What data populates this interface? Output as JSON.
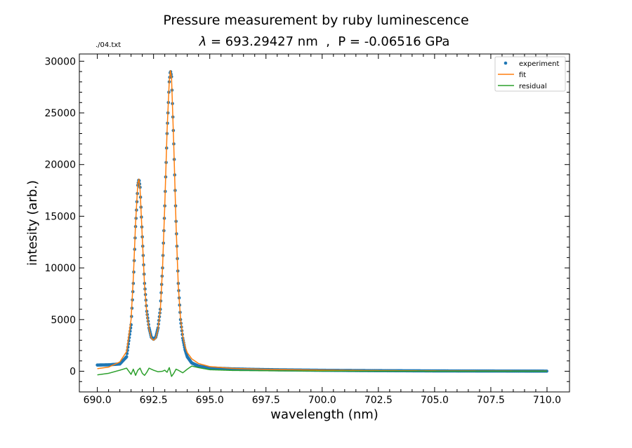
{
  "chart_data": {
    "type": "line",
    "title": "Pressure measurement by ruby luminescence",
    "subtitle": {
      "lambda_symbol": "λ",
      "lambda_text": " = 693.29427 nm  ,  P = -0.06516 GPa"
    },
    "file_label": "./04.txt",
    "xlabel": "wavelength (nm)",
    "ylabel": "intesity (arb.)",
    "xlim": [
      689.2,
      711.0
    ],
    "ylim": [
      -2000,
      30700
    ],
    "x_ticks": [
      690.0,
      692.5,
      695.0,
      697.5,
      700.0,
      702.5,
      705.0,
      707.5,
      710.0
    ],
    "x_tick_labels": [
      "690.0",
      "692.5",
      "695.0",
      "697.5",
      "700.0",
      "702.5",
      "705.0",
      "707.5",
      "710.0"
    ],
    "y_ticks": [
      0,
      5000,
      10000,
      15000,
      20000,
      25000,
      30000
    ],
    "y_tick_labels": [
      "0",
      "5000",
      "10000",
      "15000",
      "20000",
      "25000",
      "30000"
    ],
    "grid": false,
    "legend_position": "top-right",
    "peaks": [
      {
        "center": 691.85,
        "height": 18600
      },
      {
        "center": 693.29,
        "height": 29100
      }
    ],
    "series": [
      {
        "name": "experiment",
        "style": "points",
        "color": "#1f77b4",
        "x": [
          690.0,
          690.5,
          691.0,
          691.3,
          691.5,
          691.6,
          691.7,
          691.8,
          691.85,
          691.9,
          692.0,
          692.1,
          692.2,
          692.3,
          692.4,
          692.5,
          692.6,
          692.7,
          692.8,
          692.9,
          693.0,
          693.1,
          693.2,
          693.25,
          693.3,
          693.4,
          693.5,
          693.6,
          693.7,
          693.8,
          693.9,
          694.0,
          694.2,
          694.5,
          695.0,
          696.0,
          697.0,
          698.0,
          700.0,
          702.0,
          705.0,
          710.0
        ],
        "y": [
          600,
          620,
          700,
          1400,
          4500,
          8500,
          14000,
          18000,
          18600,
          17800,
          13000,
          8500,
          5800,
          4200,
          3300,
          3100,
          3300,
          4200,
          6000,
          10000,
          16000,
          23000,
          28000,
          29100,
          28500,
          22000,
          14500,
          8500,
          5000,
          3200,
          2100,
          1400,
          800,
          500,
          330,
          230,
          180,
          140,
          90,
          60,
          30,
          10
        ]
      },
      {
        "name": "fit",
        "style": "line",
        "color": "#ff7f0e",
        "x": [
          690.0,
          690.5,
          691.0,
          691.3,
          691.5,
          691.6,
          691.7,
          691.8,
          691.85,
          691.9,
          692.0,
          692.1,
          692.2,
          692.3,
          692.4,
          692.5,
          692.6,
          692.7,
          692.8,
          692.9,
          693.0,
          693.1,
          693.2,
          693.25,
          693.3,
          693.4,
          693.5,
          693.6,
          693.7,
          693.8,
          693.9,
          694.0,
          694.2,
          694.5,
          695.0,
          696.0,
          697.0,
          698.0,
          700.0,
          702.0,
          705.0,
          710.0
        ],
        "y": [
          250,
          400,
          900,
          1900,
          5000,
          9000,
          14300,
          18200,
          18600,
          17600,
          12900,
          8300,
          5600,
          4100,
          3200,
          3000,
          3200,
          4100,
          5900,
          10000,
          16100,
          23200,
          28100,
          29100,
          28400,
          21800,
          14200,
          8300,
          5100,
          3400,
          2400,
          1800,
          1200,
          750,
          450,
          280,
          210,
          160,
          110,
          70,
          40,
          15
        ]
      },
      {
        "name": "residual",
        "style": "line",
        "color": "#2ca02c",
        "x": [
          690.0,
          690.5,
          691.0,
          691.3,
          691.5,
          691.6,
          691.7,
          691.8,
          691.9,
          692.0,
          692.1,
          692.2,
          692.3,
          692.5,
          692.7,
          692.9,
          693.0,
          693.1,
          693.2,
          693.3,
          693.4,
          693.5,
          693.6,
          693.8,
          694.0,
          694.2,
          694.5,
          695.0,
          696.0,
          698.0,
          700.0,
          702.0,
          705.0,
          710.0
        ],
        "y": [
          -350,
          -200,
          100,
          300,
          -300,
          200,
          -400,
          100,
          300,
          -200,
          -400,
          -100,
          300,
          100,
          -50,
          0,
          100,
          -100,
          350,
          -500,
          -200,
          200,
          100,
          -150,
          200,
          500,
          350,
          150,
          80,
          40,
          20,
          10,
          5,
          0
        ]
      }
    ]
  }
}
